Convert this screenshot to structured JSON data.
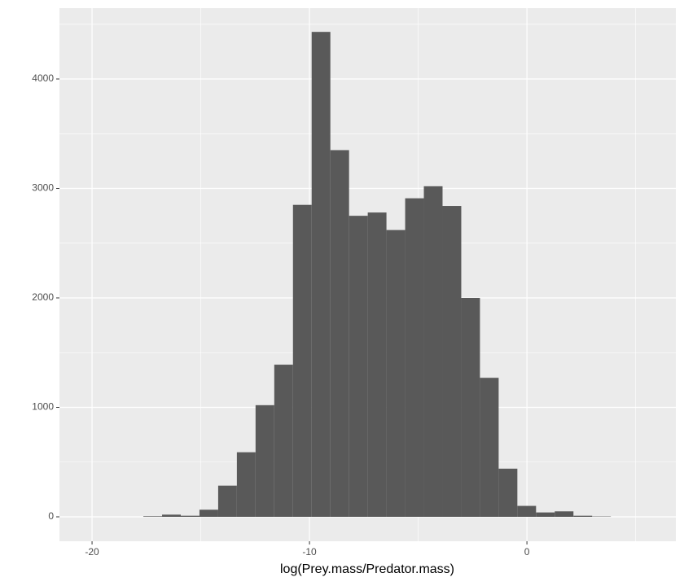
{
  "chart_data": {
    "type": "histogram",
    "x_label": "log(Prey.mass/Predator.mass)",
    "bins": [
      -17.64,
      -16.78,
      -15.92,
      -15.06,
      -14.2,
      -13.34,
      -12.48,
      -11.62,
      -10.76,
      -9.9,
      -9.04,
      -8.18,
      -7.32,
      -6.46,
      -5.6,
      -4.74,
      -3.88,
      -3.02,
      -2.16,
      -1.3,
      -0.44,
      0.42,
      1.28,
      2.14,
      3.0,
      3.86
    ],
    "values": [
      5,
      20,
      10,
      65,
      285,
      590,
      1020,
      1390,
      2850,
      4430,
      3350,
      2750,
      2780,
      2620,
      2910,
      3020,
      2840,
      2000,
      1270,
      440,
      100,
      40,
      50,
      10,
      3
    ],
    "color": "#595959",
    "panel_color": "#ebebeb",
    "xlim": [
      -21.5,
      6.85
    ],
    "xticks": [
      -20,
      -10,
      0
    ],
    "ylim": [
      -223,
      4647
    ],
    "yticks": [
      0,
      1000,
      2000,
      3000,
      4000
    ],
    "grid": true,
    "minor_grid": true
  }
}
